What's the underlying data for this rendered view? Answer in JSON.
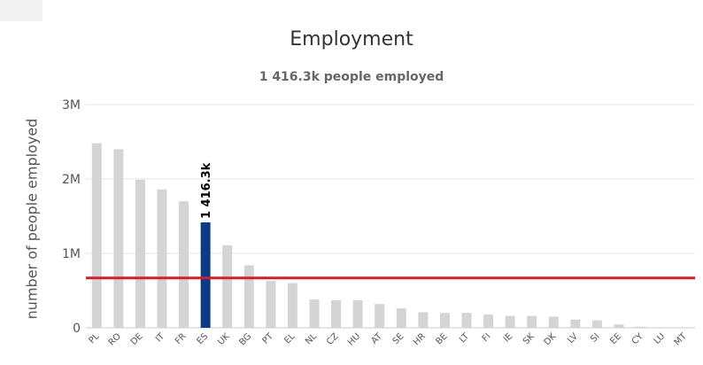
{
  "chart_data": {
    "type": "bar",
    "title": "Employment",
    "subtitle": "1 416.3k people employed",
    "ylabel": "number of people employed",
    "ylim": [
      0,
      3000000
    ],
    "yticks": [
      {
        "value": 0,
        "label": "0"
      },
      {
        "value": 1000000,
        "label": "1M"
      },
      {
        "value": 2000000,
        "label": "2M"
      },
      {
        "value": 3000000,
        "label": "3M"
      }
    ],
    "categories": [
      "PL",
      "RO",
      "DE",
      "IT",
      "FR",
      "ES",
      "UK",
      "BG",
      "PT",
      "EL",
      "NL",
      "CZ",
      "HU",
      "AT",
      "SE",
      "HR",
      "BE",
      "LT",
      "FI",
      "IE",
      "SK",
      "DK",
      "LV",
      "SI",
      "EE",
      "CY",
      "LU",
      "MT"
    ],
    "values": [
      2480000,
      2400000,
      1990000,
      1860000,
      1700000,
      1416300,
      1110000,
      840000,
      630000,
      600000,
      380000,
      370000,
      370000,
      320000,
      260000,
      210000,
      200000,
      200000,
      180000,
      160000,
      160000,
      150000,
      110000,
      100000,
      45000,
      15000,
      5000,
      3000
    ],
    "highlight": {
      "category": "ES",
      "label": "1 416.3k",
      "color": "#0b3a86"
    },
    "bar_color": "#d4d4d4",
    "reference_line": {
      "value": 670000,
      "color": "#d0202e"
    },
    "grid": true,
    "legend": "none"
  }
}
